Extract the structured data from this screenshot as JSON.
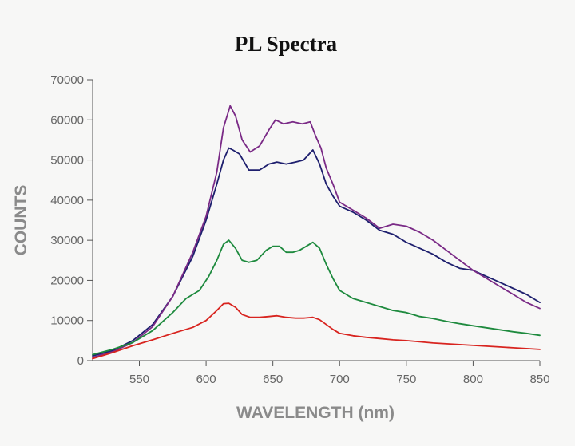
{
  "chart_data": {
    "type": "line",
    "title": "PL Spectra",
    "xlabel": "WAVELENGTH (nm)",
    "ylabel": "COUNTS",
    "xlim": [
      515,
      850
    ],
    "ylim": [
      0,
      70000
    ],
    "xticks": [
      550,
      600,
      650,
      700,
      750,
      800,
      850
    ],
    "yticks": [
      0,
      10000,
      20000,
      30000,
      40000,
      50000,
      60000,
      70000
    ],
    "grid": false,
    "legend": "none",
    "series": [
      {
        "color": "#1e1f6e",
        "x": [
          515,
          530,
          545,
          560,
          575,
          590,
          600,
          608,
          613,
          617,
          620,
          625,
          632,
          640,
          647,
          653,
          660,
          667,
          673,
          680,
          685,
          690,
          695,
          700,
          710,
          720,
          730,
          740,
          750,
          760,
          770,
          780,
          790,
          800,
          810,
          820,
          830,
          840,
          850
        ],
        "y": [
          1200,
          2500,
          5000,
          9000,
          16000,
          26000,
          35000,
          44000,
          50000,
          53000,
          52500,
          51500,
          47500,
          47500,
          49000,
          49500,
          49000,
          49500,
          50000,
          52500,
          49000,
          44000,
          41000,
          38500,
          37000,
          35000,
          32500,
          31500,
          29500,
          28000,
          26500,
          24500,
          23000,
          22500,
          21000,
          19500,
          18000,
          16500,
          14500
        ]
      },
      {
        "color": "#7a2a86",
        "x": [
          515,
          530,
          545,
          560,
          575,
          590,
          600,
          608,
          613,
          618,
          622,
          627,
          633,
          640,
          647,
          652,
          658,
          665,
          672,
          678,
          682,
          686,
          690,
          695,
          700,
          710,
          720,
          730,
          740,
          750,
          760,
          770,
          780,
          790,
          800,
          810,
          820,
          830,
          840,
          850
        ],
        "y": [
          800,
          2200,
          4500,
          8500,
          16000,
          27000,
          36000,
          47000,
          58000,
          63500,
          61000,
          55000,
          52000,
          53500,
          57500,
          60000,
          59000,
          59500,
          59000,
          59500,
          56000,
          53000,
          48000,
          44000,
          39500,
          37500,
          35500,
          33000,
          34000,
          33500,
          32000,
          30000,
          27500,
          25000,
          22500,
          20500,
          18500,
          16500,
          14500,
          13000
        ]
      },
      {
        "color": "#1e8a3e",
        "x": [
          515,
          530,
          545,
          560,
          575,
          585,
          595,
          602,
          608,
          613,
          617,
          622,
          627,
          632,
          638,
          645,
          650,
          655,
          660,
          665,
          670,
          675,
          680,
          685,
          690,
          695,
          700,
          710,
          720,
          730,
          740,
          750,
          760,
          770,
          780,
          790,
          800,
          810,
          820,
          830,
          840,
          850
        ],
        "y": [
          1500,
          2800,
          4500,
          7500,
          12000,
          15500,
          17500,
          21000,
          25000,
          29000,
          30000,
          28000,
          25000,
          24500,
          25000,
          27500,
          28500,
          28500,
          27000,
          27000,
          27500,
          28500,
          29500,
          28000,
          24000,
          20500,
          17500,
          15500,
          14500,
          13500,
          12500,
          12000,
          11000,
          10500,
          9800,
          9200,
          8700,
          8200,
          7700,
          7200,
          6800,
          6300
        ]
      },
      {
        "color": "#d8241f",
        "x": [
          515,
          530,
          545,
          560,
          575,
          590,
          600,
          608,
          613,
          617,
          622,
          627,
          633,
          640,
          647,
          653,
          660,
          667,
          673,
          680,
          685,
          690,
          695,
          700,
          710,
          720,
          730,
          740,
          750,
          760,
          770,
          780,
          790,
          800,
          810,
          820,
          830,
          840,
          850
        ],
        "y": [
          500,
          2000,
          3700,
          5200,
          6800,
          8300,
          10000,
          12500,
          14200,
          14300,
          13300,
          11500,
          10800,
          10800,
          11000,
          11200,
          10800,
          10600,
          10600,
          10800,
          10200,
          9000,
          7800,
          6800,
          6200,
          5800,
          5500,
          5200,
          5000,
          4700,
          4400,
          4200,
          4000,
          3800,
          3600,
          3400,
          3200,
          3000,
          2800
        ]
      }
    ]
  }
}
